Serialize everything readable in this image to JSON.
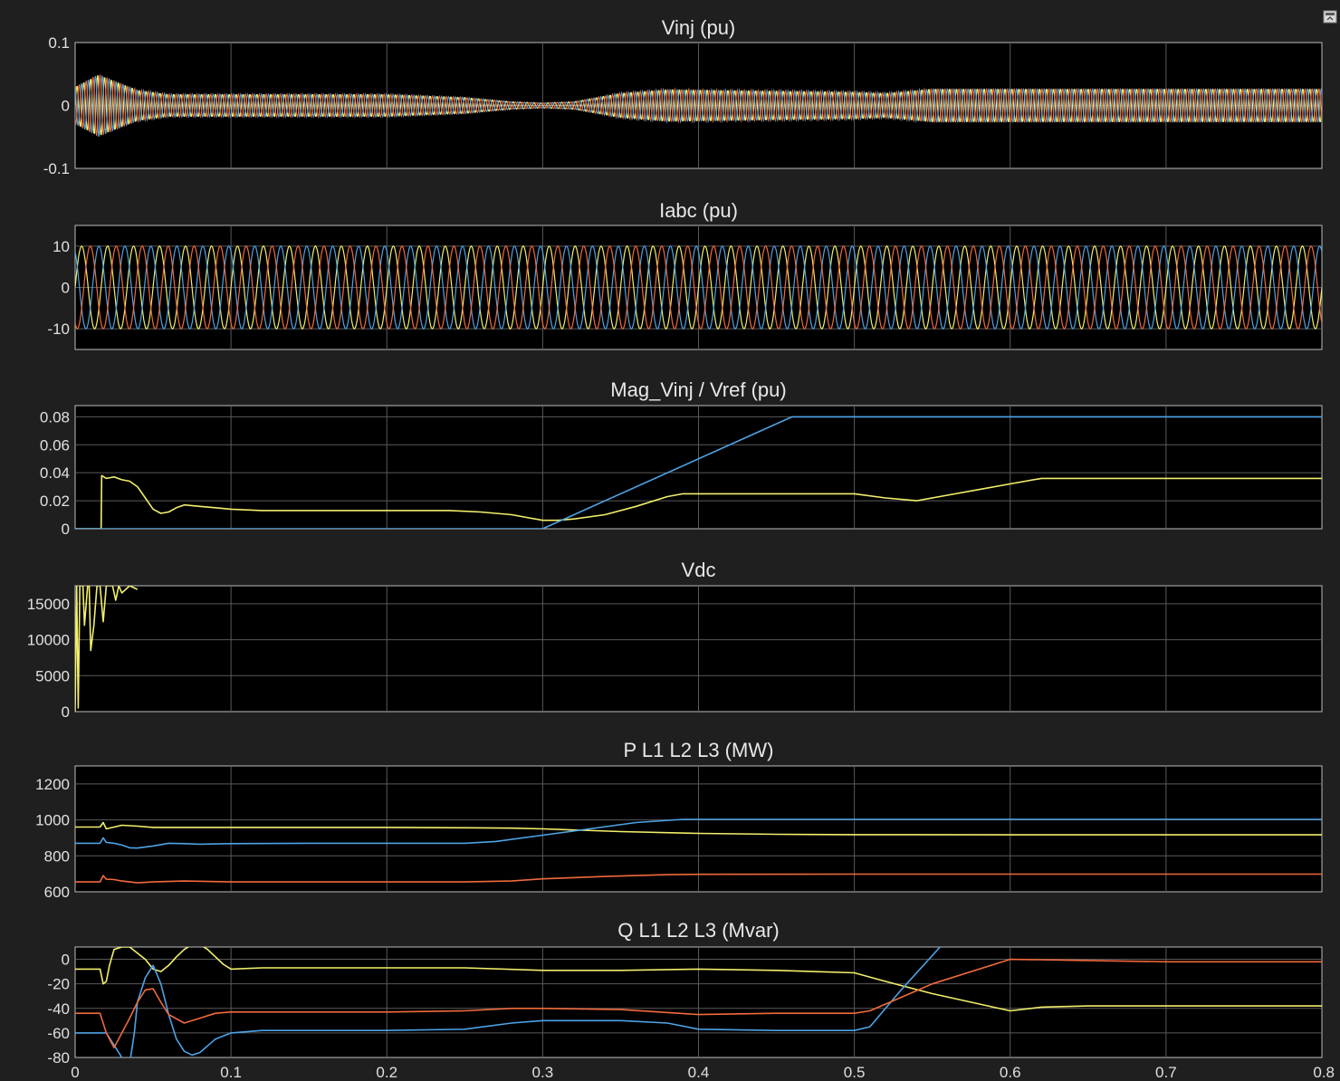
{
  "chart_data": [
    {
      "type": "line",
      "title": "Vinj (pu)",
      "ylim": [
        -0.1,
        0.1
      ],
      "yticks": [
        -0.1,
        0,
        0.1
      ],
      "ytick_labels": [
        "-0.1",
        "0",
        "0.1"
      ],
      "xlim": [
        0,
        0.8
      ],
      "grid": true,
      "colors": [
        "#f2ef6b",
        "#4ea3e6",
        "#f06a3d"
      ],
      "series": [
        {
          "kind": "three-phase-envelope",
          "phase_count": 3,
          "frequency_cycles": 180,
          "envelope": {
            "x": [
              0,
              0.015,
              0.04,
              0.06,
              0.2,
              0.25,
              0.28,
              0.3,
              0.32,
              0.35,
              0.38,
              0.5,
              0.52,
              0.55,
              0.8
            ],
            "amp": [
              0.03,
              0.05,
              0.025,
              0.018,
              0.018,
              0.013,
              0.006,
              0.004,
              0.006,
              0.02,
              0.026,
              0.022,
              0.02,
              0.027,
              0.027
            ]
          }
        }
      ]
    },
    {
      "type": "line",
      "title": "Iabc (pu)",
      "ylim": [
        -15,
        15
      ],
      "yticks": [
        -10,
        0,
        10
      ],
      "ytick_labels": [
        "-10",
        "0",
        "10"
      ],
      "xlim": [
        0,
        0.8
      ],
      "grid": true,
      "colors": [
        "#f2ef6b",
        "#4ea3e6",
        "#f06a3d"
      ],
      "series": [
        {
          "kind": "three-phase-envelope",
          "phase_count": 3,
          "frequency_cycles": 48,
          "envelope": {
            "x": [
              0,
              0.8
            ],
            "amp": [
              10,
              10
            ]
          }
        }
      ]
    },
    {
      "type": "line",
      "title": "Mag_Vinj  / Vref (pu)",
      "ylim": [
        0,
        0.088
      ],
      "yticks": [
        0,
        0.02,
        0.04,
        0.06,
        0.08
      ],
      "ytick_labels": [
        "0",
        "0.02",
        "0.04",
        "0.06",
        "0.08"
      ],
      "xlim": [
        0,
        0.8
      ],
      "grid": true,
      "series": [
        {
          "name": "",
          "color": "#f2ef6b",
          "x": [
            0,
            0.0167,
            0.017,
            0.02,
            0.025,
            0.03,
            0.035,
            0.04,
            0.045,
            0.05,
            0.055,
            0.06,
            0.065,
            0.07,
            0.08,
            0.09,
            0.1,
            0.12,
            0.15,
            0.2,
            0.24,
            0.26,
            0.28,
            0.29,
            0.3,
            0.31,
            0.32,
            0.34,
            0.36,
            0.38,
            0.39,
            0.4,
            0.45,
            0.5,
            0.52,
            0.54,
            0.56,
            0.58,
            0.6,
            0.62,
            0.65,
            0.7,
            0.75,
            0.8
          ],
          "y": [
            0,
            0,
            0.038,
            0.036,
            0.037,
            0.035,
            0.034,
            0.03,
            0.022,
            0.014,
            0.011,
            0.012,
            0.015,
            0.017,
            0.016,
            0.015,
            0.014,
            0.013,
            0.013,
            0.013,
            0.013,
            0.012,
            0.01,
            0.008,
            0.006,
            0.006,
            0.007,
            0.01,
            0.016,
            0.023,
            0.025,
            0.025,
            0.025,
            0.025,
            0.022,
            0.02,
            0.024,
            0.028,
            0.032,
            0.036,
            0.036,
            0.036,
            0.036,
            0.036
          ]
        },
        {
          "name": "",
          "color": "#4ea3e6",
          "x": [
            0,
            0.3,
            0.46,
            0.8
          ],
          "y": [
            0,
            0,
            0.08,
            0.08
          ]
        }
      ]
    },
    {
      "type": "line",
      "title": "Vdc",
      "ylim": [
        0,
        17500
      ],
      "yticks": [
        0,
        5000,
        10000,
        15000
      ],
      "ytick_labels": [
        "0",
        "5000",
        "10000",
        "15000"
      ],
      "xlim": [
        0,
        0.8
      ],
      "grid": true,
      "series": [
        {
          "name": "",
          "color": "#f2ef6b",
          "x": [
            0,
            0.001,
            0.002,
            0.003,
            0.005,
            0.006,
            0.008,
            0.009,
            0.01,
            0.012,
            0.014,
            0.016,
            0.018,
            0.02,
            0.022,
            0.024,
            0.026,
            0.028,
            0.03,
            0.035,
            0.04
          ],
          "y": [
            0,
            17500,
            500,
            17500,
            17500,
            12000,
            17500,
            17500,
            8500,
            12000,
            17500,
            17500,
            12500,
            17500,
            17500,
            17500,
            15500,
            17500,
            16500,
            17500,
            17000
          ]
        }
      ]
    },
    {
      "type": "line",
      "title": "P L1 L2 L3 (MW)",
      "ylim": [
        600,
        1300
      ],
      "yticks": [
        600,
        800,
        1000,
        1200
      ],
      "ytick_labels": [
        "600",
        "800",
        "1000",
        "1200"
      ],
      "xlim": [
        0,
        0.8
      ],
      "grid": true,
      "series": [
        {
          "name": "",
          "color": "#f2ef6b",
          "x": [
            0,
            0.016,
            0.018,
            0.02,
            0.025,
            0.03,
            0.04,
            0.05,
            0.1,
            0.15,
            0.2,
            0.25,
            0.28,
            0.3,
            0.35,
            0.4,
            0.45,
            0.5,
            0.6,
            0.7,
            0.8
          ],
          "y": [
            960,
            960,
            985,
            950,
            960,
            970,
            965,
            958,
            958,
            958,
            958,
            956,
            954,
            950,
            935,
            925,
            920,
            918,
            917,
            917,
            917
          ]
        },
        {
          "name": "",
          "color": "#4ea3e6",
          "x": [
            0,
            0.016,
            0.018,
            0.02,
            0.025,
            0.03,
            0.035,
            0.04,
            0.05,
            0.06,
            0.07,
            0.08,
            0.1,
            0.15,
            0.2,
            0.25,
            0.27,
            0.3,
            0.33,
            0.36,
            0.39,
            0.42,
            0.5,
            0.6,
            0.7,
            0.8
          ],
          "y": [
            870,
            870,
            900,
            875,
            870,
            860,
            845,
            843,
            855,
            870,
            868,
            865,
            868,
            870,
            870,
            870,
            880,
            915,
            950,
            985,
            1003,
            1003,
            1003,
            1003,
            1003,
            1003
          ]
        },
        {
          "name": "",
          "color": "#f06a3d",
          "x": [
            0,
            0.016,
            0.018,
            0.02,
            0.025,
            0.03,
            0.04,
            0.05,
            0.07,
            0.1,
            0.15,
            0.2,
            0.25,
            0.28,
            0.3,
            0.34,
            0.38,
            0.4,
            0.5,
            0.6,
            0.7,
            0.8
          ],
          "y": [
            655,
            655,
            690,
            670,
            668,
            660,
            650,
            655,
            660,
            655,
            655,
            655,
            655,
            660,
            672,
            685,
            695,
            697,
            698,
            698,
            698,
            698
          ]
        }
      ]
    },
    {
      "type": "line",
      "title": "Q L1 L2 L3 (Mvar)",
      "ylim": [
        -80,
        10
      ],
      "yticks": [
        -80,
        -60,
        -40,
        -20,
        0
      ],
      "ytick_labels": [
        "-80",
        "-60",
        "-40",
        "-20",
        "0"
      ],
      "xlim": [
        0,
        0.8
      ],
      "xticks": [
        0,
        0.1,
        0.2,
        0.3,
        0.4,
        0.5,
        0.6,
        0.7,
        0.8
      ],
      "xtick_labels": [
        "0",
        "0.1",
        "0.2",
        "0.3",
        "0.4",
        "0.5",
        "0.6",
        "0.7",
        "0.8"
      ],
      "grid": true,
      "series": [
        {
          "name": "",
          "color": "#f2ef6b",
          "x": [
            0,
            0.016,
            0.018,
            0.02,
            0.022,
            0.025,
            0.03,
            0.035,
            0.04,
            0.045,
            0.05,
            0.055,
            0.06,
            0.065,
            0.07,
            0.075,
            0.08,
            0.085,
            0.09,
            0.095,
            0.1,
            0.12,
            0.15,
            0.2,
            0.25,
            0.3,
            0.35,
            0.4,
            0.45,
            0.5,
            0.52,
            0.55,
            0.6,
            0.62,
            0.65,
            0.7,
            0.75,
            0.8
          ],
          "y": [
            -8,
            -8,
            -20,
            -18,
            -5,
            8,
            10,
            10,
            5,
            0,
            -8,
            -10,
            -5,
            2,
            8,
            12,
            12,
            8,
            2,
            -4,
            -8,
            -7,
            -7,
            -7,
            -7,
            -9,
            -9,
            -8,
            -9,
            -11,
            -18,
            -28,
            -42,
            -39,
            -38,
            -38,
            -38,
            -38
          ]
        },
        {
          "name": "",
          "color": "#4ea3e6",
          "x": [
            0,
            0.016,
            0.02,
            0.025,
            0.03,
            0.035,
            0.038,
            0.04,
            0.045,
            0.05,
            0.055,
            0.06,
            0.065,
            0.07,
            0.075,
            0.08,
            0.09,
            0.1,
            0.12,
            0.15,
            0.2,
            0.25,
            0.28,
            0.3,
            0.35,
            0.38,
            0.4,
            0.45,
            0.48,
            0.5,
            0.51,
            0.53,
            0.555
          ],
          "y": [
            -60,
            -60,
            -60,
            -70,
            -80,
            -85,
            -60,
            -35,
            -15,
            -5,
            -20,
            -45,
            -65,
            -75,
            -78,
            -76,
            -65,
            -60,
            -58,
            -58,
            -58,
            -57,
            -52,
            -50,
            -50,
            -52,
            -57,
            -58,
            -58,
            -58,
            -55,
            -25,
            10
          ]
        },
        {
          "name": "",
          "color": "#f06a3d",
          "x": [
            0,
            0.016,
            0.02,
            0.025,
            0.03,
            0.035,
            0.04,
            0.045,
            0.05,
            0.055,
            0.06,
            0.07,
            0.08,
            0.09,
            0.1,
            0.15,
            0.2,
            0.25,
            0.28,
            0.3,
            0.35,
            0.4,
            0.45,
            0.5,
            0.51,
            0.55,
            0.6,
            0.65,
            0.7,
            0.8
          ],
          "y": [
            -44,
            -44,
            -60,
            -72,
            -60,
            -48,
            -35,
            -25,
            -24,
            -35,
            -45,
            -52,
            -48,
            -44,
            -43,
            -43,
            -43,
            -42,
            -40,
            -40,
            -41,
            -45,
            -44,
            -44,
            -42,
            -20,
            0,
            -1,
            -2,
            -2
          ]
        }
      ]
    }
  ],
  "icons": {
    "expand": "dock-toggle-icon"
  }
}
